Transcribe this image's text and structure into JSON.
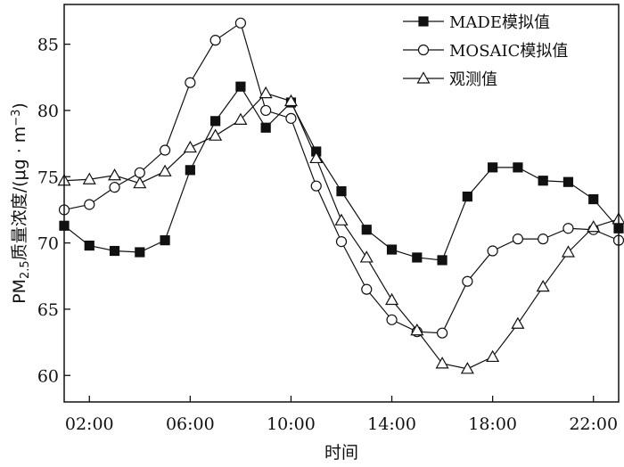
{
  "chart_data": {
    "type": "line",
    "title": "",
    "xlabel": "时间",
    "ylabel": {
      "main": "PM",
      "sub": "2.5",
      "text": "质量浓度/(μg · m",
      "sup": "−3",
      "close": ")"
    },
    "x": [
      1,
      2,
      3,
      4,
      5,
      6,
      7,
      8,
      9,
      10,
      11,
      12,
      13,
      14,
      15,
      16,
      17,
      18,
      19,
      20,
      21,
      22,
      23
    ],
    "xlim": [
      1,
      23
    ],
    "ylim": [
      58,
      88
    ],
    "xticks": [
      {
        "value": 2,
        "label": "02:00"
      },
      {
        "value": 6,
        "label": "06:00"
      },
      {
        "value": 10,
        "label": "10:00"
      },
      {
        "value": 14,
        "label": "14:00"
      },
      {
        "value": 18,
        "label": "18:00"
      },
      {
        "value": 22,
        "label": "22:00"
      }
    ],
    "yticks": [
      60,
      65,
      70,
      75,
      80,
      85
    ],
    "legend_position": "top-right",
    "grid": false,
    "series": [
      {
        "name": "MADE模拟值",
        "marker": "square",
        "values": [
          71.3,
          69.8,
          69.4,
          69.3,
          70.2,
          75.5,
          79.2,
          81.8,
          78.7,
          80.6,
          76.9,
          73.9,
          71.0,
          69.5,
          68.9,
          68.7,
          73.5,
          75.7,
          75.7,
          74.7,
          74.6,
          73.3,
          71.1
        ]
      },
      {
        "name": "MOSAIC模拟值",
        "marker": "circle",
        "values": [
          72.5,
          72.9,
          74.2,
          75.3,
          77.0,
          82.1,
          85.3,
          86.6,
          80.0,
          79.4,
          74.3,
          70.1,
          66.5,
          64.2,
          63.3,
          63.2,
          67.1,
          69.4,
          70.3,
          70.3,
          71.1,
          71.0,
          70.2
        ]
      },
      {
        "name": "观测值",
        "marker": "triangle",
        "values": [
          74.7,
          74.8,
          75.1,
          74.5,
          75.4,
          77.2,
          78.1,
          79.3,
          81.3,
          80.7,
          76.4,
          71.7,
          68.9,
          65.7,
          63.4,
          60.9,
          60.5,
          61.4,
          63.9,
          66.7,
          69.3,
          71.2,
          71.8
        ]
      }
    ]
  }
}
